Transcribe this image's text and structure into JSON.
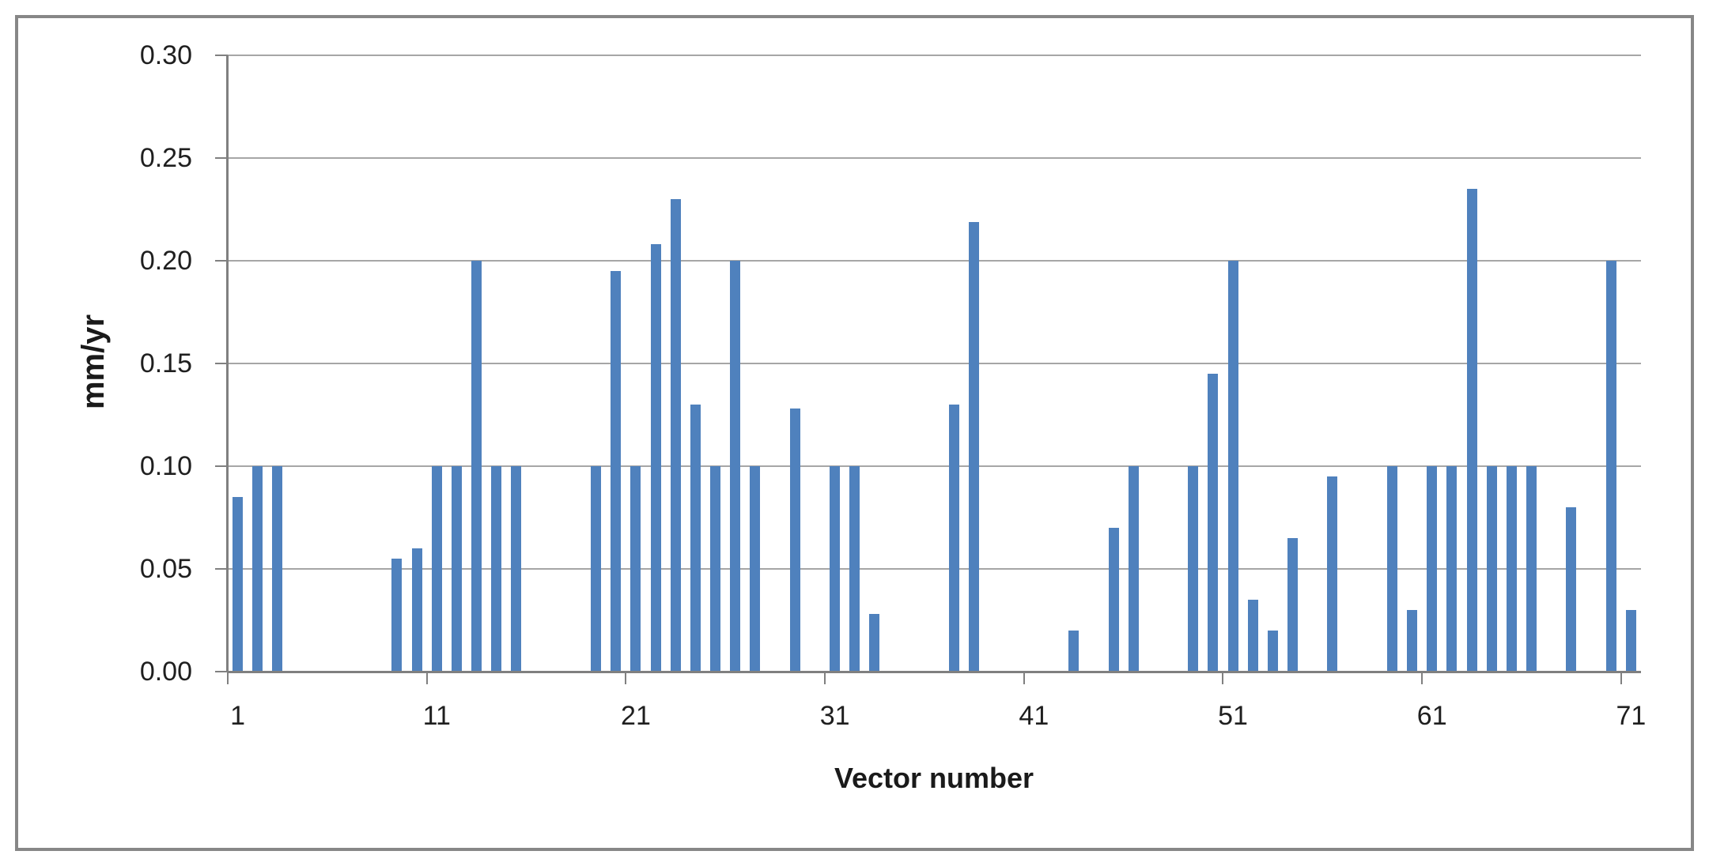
{
  "frame": {
    "border_color": "#878787",
    "background": "#ffffff"
  },
  "chart_data": {
    "type": "bar",
    "title": "",
    "xlabel": "Vector number",
    "ylabel": "mm/yr",
    "bar_color": "#4f81bd",
    "gridline_color": "#a6a6a6",
    "axis_color": "#808080",
    "grid": true,
    "legend": false,
    "ylim": [
      0,
      0.3
    ],
    "y_tick_step": 0.05,
    "y_tick_labels": [
      "0.00",
      "0.05",
      "0.10",
      "0.15",
      "0.20",
      "0.25",
      "0.30"
    ],
    "x_tick_labels": [
      1,
      11,
      21,
      31,
      41,
      51,
      61,
      71
    ],
    "n_categories": 71,
    "points": [
      {
        "x": 1,
        "y": 0.085
      },
      {
        "x": 2,
        "y": 0.1
      },
      {
        "x": 3,
        "y": 0.1
      },
      {
        "x": 9,
        "y": 0.055
      },
      {
        "x": 10,
        "y": 0.06
      },
      {
        "x": 11,
        "y": 0.1
      },
      {
        "x": 12,
        "y": 0.1
      },
      {
        "x": 13,
        "y": 0.2
      },
      {
        "x": 14,
        "y": 0.1
      },
      {
        "x": 15,
        "y": 0.1
      },
      {
        "x": 19,
        "y": 0.1
      },
      {
        "x": 20,
        "y": 0.195
      },
      {
        "x": 21,
        "y": 0.1
      },
      {
        "x": 22,
        "y": 0.208
      },
      {
        "x": 23,
        "y": 0.23
      },
      {
        "x": 24,
        "y": 0.13
      },
      {
        "x": 25,
        "y": 0.1
      },
      {
        "x": 26,
        "y": 0.2
      },
      {
        "x": 27,
        "y": 0.1
      },
      {
        "x": 29,
        "y": 0.128
      },
      {
        "x": 31,
        "y": 0.1
      },
      {
        "x": 32,
        "y": 0.1
      },
      {
        "x": 33,
        "y": 0.028
      },
      {
        "x": 37,
        "y": 0.13
      },
      {
        "x": 38,
        "y": 0.219
      },
      {
        "x": 43,
        "y": 0.02
      },
      {
        "x": 45,
        "y": 0.07
      },
      {
        "x": 46,
        "y": 0.1
      },
      {
        "x": 49,
        "y": 0.1
      },
      {
        "x": 50,
        "y": 0.145
      },
      {
        "x": 51,
        "y": 0.2
      },
      {
        "x": 52,
        "y": 0.035
      },
      {
        "x": 53,
        "y": 0.02
      },
      {
        "x": 54,
        "y": 0.065
      },
      {
        "x": 56,
        "y": 0.095
      },
      {
        "x": 59,
        "y": 0.1
      },
      {
        "x": 60,
        "y": 0.03
      },
      {
        "x": 61,
        "y": 0.1
      },
      {
        "x": 62,
        "y": 0.1
      },
      {
        "x": 63,
        "y": 0.235
      },
      {
        "x": 64,
        "y": 0.1
      },
      {
        "x": 65,
        "y": 0.1
      },
      {
        "x": 66,
        "y": 0.1
      },
      {
        "x": 68,
        "y": 0.08
      },
      {
        "x": 70,
        "y": 0.2
      },
      {
        "x": 71,
        "y": 0.03
      }
    ]
  }
}
